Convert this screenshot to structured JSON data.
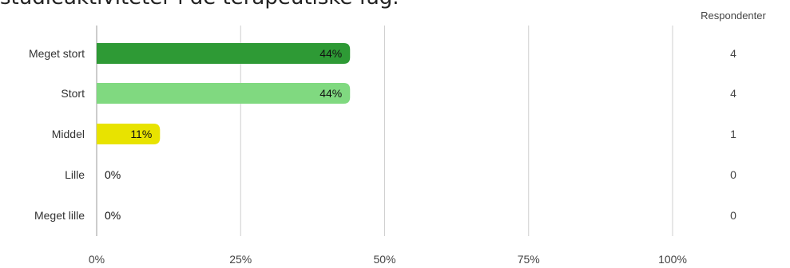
{
  "title": "studieaktiviteter i de terapeutiske fag.",
  "chart_data": {
    "type": "bar",
    "orientation": "horizontal",
    "title": "studieaktiviteter i de terapeutiske fag.",
    "categories": [
      "Meget stort",
      "Stort",
      "Middel",
      "Lille",
      "Meget lille"
    ],
    "values": [
      44,
      44,
      11,
      0,
      0
    ],
    "value_labels": [
      "44%",
      "44%",
      "11%",
      "0%",
      "0%"
    ],
    "colors": [
      "#2e9a35",
      "#80d980",
      "#e8e300",
      "#cccccc",
      "#cccccc"
    ],
    "xlim": [
      0,
      100
    ],
    "xticks": [
      0,
      25,
      50,
      75,
      100
    ],
    "xtick_labels": [
      "0%",
      "25%",
      "50%",
      "75%",
      "100%"
    ],
    "respondents_header": "Respondenter",
    "respondents": [
      4,
      4,
      1,
      0,
      0
    ],
    "grid": true
  }
}
